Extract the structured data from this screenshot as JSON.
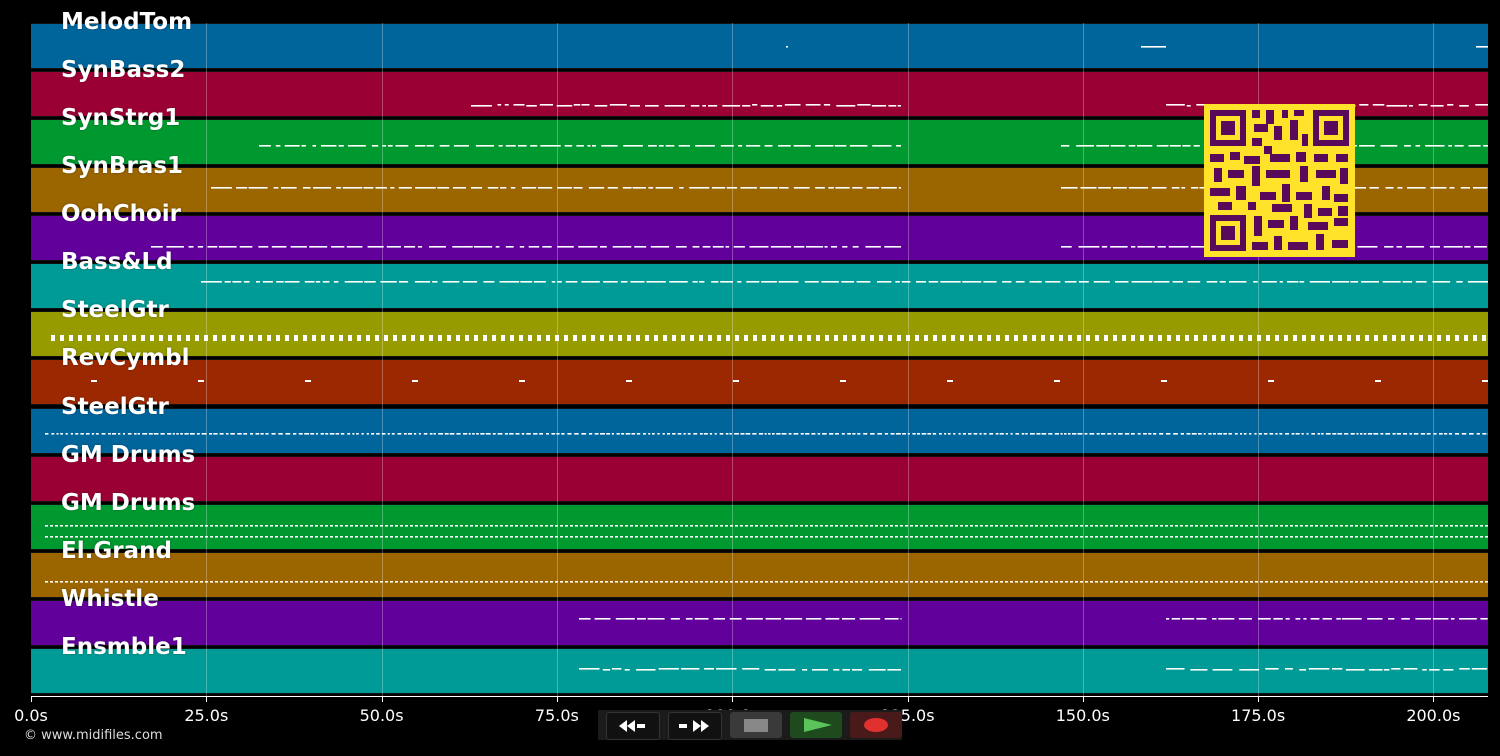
{
  "tracks": [
    {
      "label": "MelodTom",
      "color": "#00659b"
    },
    {
      "label": "SynBass2",
      "color": "#9b0034"
    },
    {
      "label": "SynStrg1",
      "color": "#00992f"
    },
    {
      "label": "SynBras1",
      "color": "#9b6500"
    },
    {
      "label": "OohChoir",
      "color": "#62009b"
    },
    {
      "label": "Bass&Ld",
      "color": "#009b96"
    },
    {
      "label": "SteelGtr",
      "color": "#969b00"
    },
    {
      "label": "RevCymbl",
      "color": "#9b2800"
    },
    {
      "label": "SteelGtr",
      "color": "#00659b"
    },
    {
      "label": "GM Drums",
      "color": "#9b0034"
    },
    {
      "label": "GM Drums",
      "color": "#00992f"
    },
    {
      "label": "El.Grand",
      "color": "#9b6500"
    },
    {
      "label": "Whistle",
      "color": "#62009b"
    },
    {
      "label": "Ensmble1",
      "color": "#009b96"
    }
  ],
  "timeline": {
    "ticks": [
      "0.0s",
      "25.0s",
      "50.0s",
      "75.0s",
      "100.0s",
      "125.0s",
      "150.0s",
      "175.0s",
      "200.0s"
    ]
  },
  "transport": {
    "rewind_icon": "rewind-icon",
    "fastforward_icon": "fast-forward-icon",
    "stop_icon": "stop-icon",
    "play_icon": "play-icon",
    "record_icon": "record-icon"
  },
  "footer": {
    "copyright": "© www.midifiles.com"
  }
}
